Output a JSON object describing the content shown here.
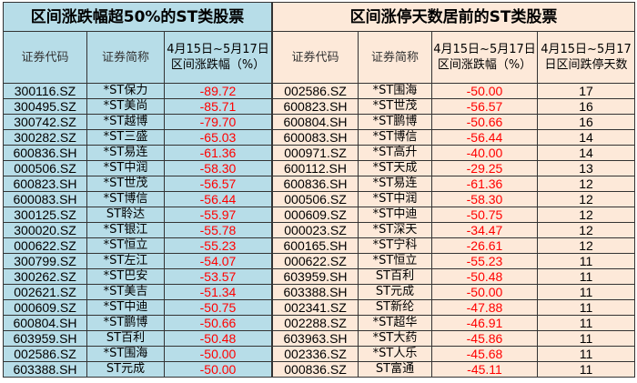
{
  "left": {
    "title": "区间涨跌幅超50%的ST类股票",
    "headers": [
      "证券代码",
      "证券简称",
      "4月15日~5月17日区间涨跌幅（%）"
    ],
    "rows": [
      [
        "300116.SZ",
        "*ST保力",
        "-89.72"
      ],
      [
        "300495.SZ",
        "*ST美尚",
        "-85.71"
      ],
      [
        "300742.SZ",
        "*ST越博",
        "-79.70"
      ],
      [
        "300282.SZ",
        "*ST三盛",
        "-65.03"
      ],
      [
        "600836.SH",
        "*ST易连",
        "-61.36"
      ],
      [
        "000506.SZ",
        "*ST中润",
        "-58.30"
      ],
      [
        "600823.SH",
        "*ST世茂",
        "-56.57"
      ],
      [
        "600083.SH",
        "*ST博信",
        "-56.44"
      ],
      [
        "300125.SZ",
        "ST聆达",
        "-55.97"
      ],
      [
        "300020.SZ",
        "*ST银江",
        "-55.78"
      ],
      [
        "000622.SZ",
        "*ST恒立",
        "-55.23"
      ],
      [
        "300799.SZ",
        "*ST左江",
        "-54.07"
      ],
      [
        "300262.SZ",
        "*ST巴安",
        "-53.57"
      ],
      [
        "002621.SZ",
        "*ST美吉",
        "-51.34"
      ],
      [
        "000609.SZ",
        "*ST中迪",
        "-50.75"
      ],
      [
        "600804.SH",
        "*ST鹏博",
        "-50.66"
      ],
      [
        "603959.SH",
        "ST百利",
        "-50.48"
      ],
      [
        "002586.SZ",
        "*ST围海",
        "-50.00"
      ],
      [
        "603388.SH",
        "ST元成",
        "-50.00"
      ]
    ]
  },
  "right": {
    "title": "区间涨停天数居前的ST类股票",
    "headers": [
      "证券代码",
      "证券简称",
      "4月15日~5月17日区间涨跌幅（%）",
      "4月15日~5月17日区间跌停天数"
    ],
    "rows": [
      [
        "002586.SZ",
        "*ST围海",
        "-50.00",
        "17"
      ],
      [
        "600823.SH",
        "*ST世茂",
        "-56.57",
        "16"
      ],
      [
        "600804.SH",
        "*ST鹏博",
        "-50.66",
        "16"
      ],
      [
        "600083.SH",
        "*ST博信",
        "-56.44",
        "14"
      ],
      [
        "000971.SZ",
        "*ST高升",
        "-40.00",
        "14"
      ],
      [
        "600112.SH",
        "*ST天成",
        "-29.25",
        "13"
      ],
      [
        "600836.SH",
        "*ST易连",
        "-61.36",
        "12"
      ],
      [
        "000506.SZ",
        "*ST中润",
        "-58.30",
        "12"
      ],
      [
        "000609.SZ",
        "*ST中迪",
        "-50.75",
        "12"
      ],
      [
        "000023.SZ",
        "*ST深天",
        "-34.47",
        "12"
      ],
      [
        "600165.SH",
        "*ST宁科",
        "-26.61",
        "12"
      ],
      [
        "000622.SZ",
        "*ST恒立",
        "-55.23",
        "11"
      ],
      [
        "603959.SH",
        "ST百利",
        "-50.48",
        "11"
      ],
      [
        "603388.SH",
        "ST元成",
        "-50.00",
        "11"
      ],
      [
        "002341.SZ",
        "ST新纶",
        "-47.88",
        "11"
      ],
      [
        "002288.SZ",
        "*ST超华",
        "-46.91",
        "11"
      ],
      [
        "603963.SH",
        "*ST大药",
        "-45.86",
        "11"
      ],
      [
        "002336.SZ",
        "*ST人乐",
        "-45.68",
        "11"
      ],
      [
        "000836.SZ",
        "ST富通",
        "-45.11",
        "11"
      ]
    ]
  },
  "colors": {
    "left_bg": "#b7dde8",
    "right_bg": "#fde9d9",
    "negative": "#ff0000"
  }
}
